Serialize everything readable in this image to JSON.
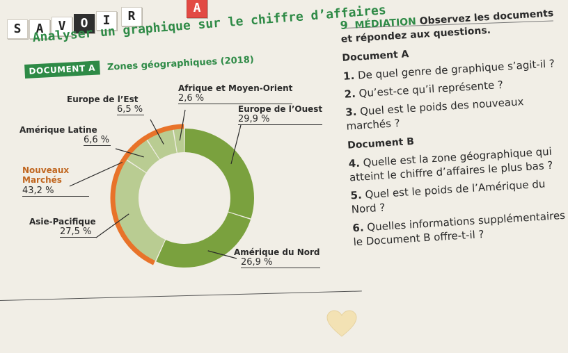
{
  "header": {
    "tiles": [
      "S",
      "A",
      "V",
      "O",
      "I",
      "R"
    ],
    "corner_tile": "A",
    "title": "Analyser un graphique sur le chiffre d’affaires"
  },
  "document_a": {
    "badge": "DOCUMENT A",
    "caption": "Zones géographiques (2018)"
  },
  "chart_data": {
    "type": "pie",
    "style": "donut",
    "categories": [
      "Europe de l’Ouest",
      "Amérique du Nord",
      "Asie-Pacifique",
      "Amérique Latine",
      "Europe de l’Est",
      "Afrique et Moyen-Orient"
    ],
    "values": [
      29.9,
      26.9,
      27.5,
      6.6,
      6.5,
      2.6
    ],
    "value_labels": [
      "29,9 %",
      "26,9 %",
      "27,5 %",
      "6,6 %",
      "6,5 %",
      "2,6 %"
    ],
    "group": {
      "name": "Nouveaux Marchés",
      "members": [
        "Asie-Pacifique",
        "Amérique Latine",
        "Europe de l’Est",
        "Afrique et Moyen-Orient"
      ],
      "value_label": "43,2 %"
    },
    "colors": {
      "mature": "#7aa13e",
      "emerging_inner": "#b9cc92",
      "emerging_outer": "#e8732a"
    }
  },
  "questions": {
    "number": "9",
    "intro_label": "MÉDIATION",
    "intro_text": "Observez les documents et répondez aux questions.",
    "doc_a_label": "Document A",
    "q1_num": "1.",
    "q1": "De quel genre de graphique s’agit-il ?",
    "q2_num": "2.",
    "q2": "Qu’est-ce qu’il représente ?",
    "q3_num": "3.",
    "q3": "Quel est le poids des nouveaux marchés ?",
    "doc_b_label": "Document B",
    "q4_num": "4.",
    "q4": "Quelle est la zone géographique qui atteint le chiffre d’affaires le plus bas ?",
    "q5_num": "5.",
    "q5": "Quel est le poids de l’Amérique du Nord ?",
    "q6_num": "6.",
    "q6": "Quelles informations supplémentaires le Document B offre-t-il ?"
  }
}
